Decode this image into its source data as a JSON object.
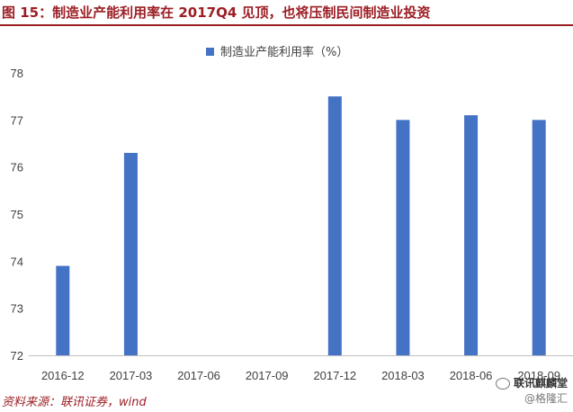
{
  "figure": {
    "title": "图 15：制造业产能利用率在 2017Q4 见顶，也将压制民间制造业投资",
    "source": "资料来源：联讯证券，wind",
    "watermark_name": "联讯麒麟堂",
    "watermark_handle": "@格隆汇"
  },
  "colors": {
    "bar": "#4472c4",
    "title": "#9c1e24",
    "text": "#404040"
  },
  "chart_data": {
    "type": "bar",
    "categories": [
      "2016-12",
      "2017-03",
      "2017-06",
      "2017-09",
      "2017-12",
      "2018-03",
      "2018-06",
      "2018-09"
    ],
    "series": [
      {
        "name": "制造业产能利用率（%）",
        "values": [
          73.9,
          76.3,
          null,
          null,
          77.5,
          77.0,
          77.1,
          77.0
        ]
      }
    ],
    "title": "",
    "xlabel": "",
    "ylabel": "",
    "ylim": [
      72,
      78
    ],
    "yticks": [
      "72",
      "73",
      "74",
      "75",
      "76",
      "77",
      "78"
    ],
    "grid": false,
    "legend_position": "top-center"
  }
}
